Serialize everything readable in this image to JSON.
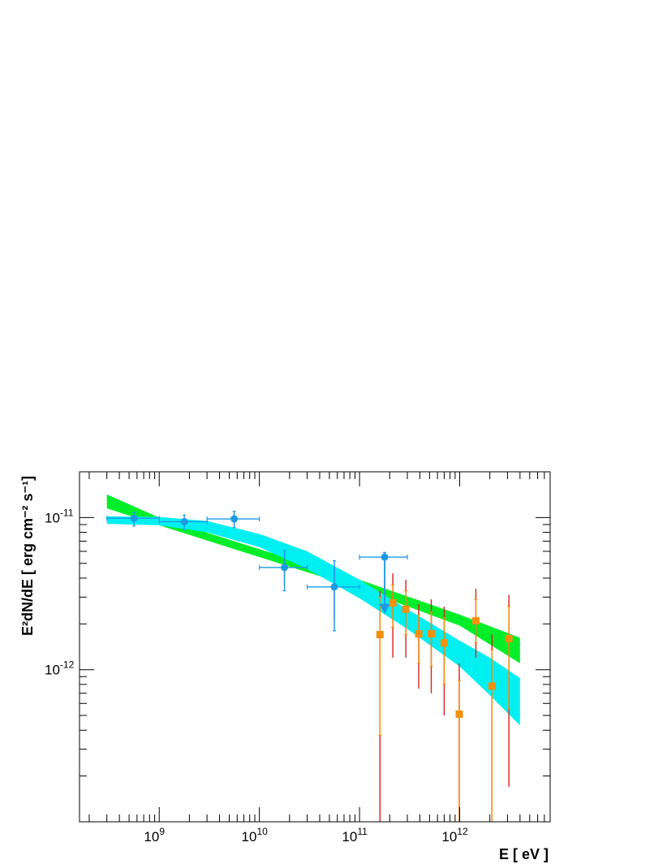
{
  "chart_data": {
    "type": "scatter",
    "x_scale": "log",
    "y_scale": "log",
    "xlabel": "E [ eV ]",
    "ylabel": "E²dN/dE [ erg cm⁻² s⁻¹]",
    "xlim": [
      160000000.0,
      8000000000000.0
    ],
    "ylim": [
      1e-13,
      2e-11
    ],
    "x_ticks": [
      {
        "value": 1000000000.0,
        "base": "10",
        "exp": "9"
      },
      {
        "value": 10000000000.0,
        "base": "10",
        "exp": "10"
      },
      {
        "value": 100000000000.0,
        "base": "10",
        "exp": "11"
      },
      {
        "value": 1000000000000.0,
        "base": "10",
        "exp": "12"
      }
    ],
    "y_ticks": [
      {
        "value": 1e-11,
        "base": "10",
        "exp": "-11"
      },
      {
        "value": 1e-12,
        "base": "10",
        "exp": "-12"
      }
    ],
    "colors": {
      "green_band": "#00ee2a",
      "cyan_band": "#00f0f2",
      "blue_points": "#1a9be6",
      "blue_stat_err": "#9b3fd6",
      "orange_points": "#f5900c",
      "orange_sys_err": "#d71f1f"
    },
    "bands": [
      {
        "name": "",
        "color": "#00ee2a",
        "x": [
          300000000.0,
          1000000000.0,
          10000000000.0,
          100000000000.0,
          1000000000000.0,
          4000000000000.0
        ],
        "y_low": [
          1.15e-11,
          8.9e-12,
          5.5e-12,
          3.4e-12,
          1.95e-12,
          1.1e-12
        ],
        "y_high": [
          1.42e-11,
          1e-11,
          6.2e-12,
          3.9e-12,
          2.3e-12,
          1.62e-12
        ]
      },
      {
        "name": "",
        "color": "#00f0f2",
        "x": [
          300000000.0,
          1000000000.0,
          3000000000.0,
          10000000000.0,
          30000000000.0,
          100000000000.0,
          300000000000.0,
          1000000000000.0,
          2000000000000.0,
          4000000000000.0
        ],
        "y_low": [
          9.1e-12,
          8.9e-12,
          8e-12,
          6.4e-12,
          4.6e-12,
          2.95e-12,
          1.85e-12,
          1.05e-12,
          6.8e-13,
          4.3e-13
        ],
        "y_high": [
          1.02e-11,
          1.01e-11,
          9.5e-12,
          7.8e-12,
          6e-12,
          3.9e-12,
          2.5e-12,
          1.55e-12,
          1.2e-12,
          8.8e-13
        ]
      }
    ],
    "series": [
      {
        "name": "",
        "color": "#1a9be6",
        "marker": "circle",
        "points": [
          {
            "x": 560000000.0,
            "y": 9.9e-12,
            "x_low": 300000000.0,
            "x_high": 1000000000.0,
            "y_low": 8.8e-12,
            "y_high": 1.08e-11,
            "sys_low": 9.2e-12,
            "sys_high": 1.05e-11
          },
          {
            "x": 1780000000.0,
            "y": 9.4e-12,
            "x_low": 1000000000.0,
            "x_high": 3000000000.0,
            "y_low": 8.3e-12,
            "y_high": 1.04e-11,
            "sys_low": 8.7e-12,
            "sys_high": 1e-11
          },
          {
            "x": 5600000000.0,
            "y": 9.8e-12,
            "x_low": 3000000000.0,
            "x_high": 10000000000.0,
            "y_low": 8.6e-12,
            "y_high": 1.1e-11,
            "sys_low": 8.9e-12,
            "sys_high": 1.07e-11
          },
          {
            "x": 17800000000.0,
            "y": 4.7e-12,
            "x_low": 10000000000.0,
            "x_high": 30000000000.0,
            "y_low": 3.3e-12,
            "y_high": 6.1e-12,
            "sys_low": 3.6e-12,
            "sys_high": 5.8e-12
          },
          {
            "x": 56000000000.0,
            "y": 3.5e-12,
            "x_low": 30000000000.0,
            "x_high": 100000000000.0,
            "y_low": 1.8e-12,
            "y_high": 5.2e-12,
            "sys_low": 2.1e-12,
            "sys_high": 4.8e-12
          },
          {
            "x": 178000000000.0,
            "y": 5.5e-12,
            "x_low": 100000000000.0,
            "x_high": 300000000000.0,
            "y_low": 2.4e-12,
            "y_high": 5.9e-12,
            "sys_low": 2.4e-12,
            "sys_high": 5.9e-12,
            "upper_limit": true
          }
        ]
      },
      {
        "name": "",
        "color": "#f5900c",
        "marker": "square",
        "points": [
          {
            "x": 160000000000.0,
            "y": 1.7e-12,
            "y_low": 3.7e-13,
            "y_high": 3e-12,
            "sys_low": 1e-13,
            "sys_high": 3.3e-12
          },
          {
            "x": 215000000000.0,
            "y": 2.75e-12,
            "y_low": 1.9e-12,
            "y_high": 3.6e-12,
            "sys_low": 1.2e-12,
            "sys_high": 4.3e-12
          },
          {
            "x": 290000000000.0,
            "y": 2.5e-12,
            "y_low": 1.7e-12,
            "y_high": 3.3e-12,
            "sys_low": 1.2e-12,
            "sys_high": 3.9e-12
          },
          {
            "x": 390000000000.0,
            "y": 1.72e-12,
            "y_low": 1.1e-12,
            "y_high": 2.3e-12,
            "sys_low": 7.5e-13,
            "sys_high": 2.7e-12
          },
          {
            "x": 520000000000.0,
            "y": 1.72e-12,
            "y_low": 1.05e-12,
            "y_high": 2.4e-12,
            "sys_low": 7e-13,
            "sys_high": 2.9e-12
          },
          {
            "x": 700000000000.0,
            "y": 1.5e-12,
            "y_low": 8e-13,
            "y_high": 2.2e-12,
            "sys_low": 5e-13,
            "sys_high": 2.6e-12
          },
          {
            "x": 990000000000.0,
            "y": 5.1e-13,
            "y_low": 1e-13,
            "y_high": 8.5e-13,
            "sys_low": 1e-13,
            "sys_high": 1.1e-12
          },
          {
            "x": 1450000000000.0,
            "y": 2.1e-12,
            "y_low": 1.5e-12,
            "y_high": 2.9e-12,
            "sys_low": 1.2e-12,
            "sys_high": 3.4e-12
          },
          {
            "x": 2100000000000.0,
            "y": 7.8e-13,
            "y_low": 1e-13,
            "y_high": 1.35e-12,
            "sys_low": 1e-13,
            "sys_high": 1.7e-12
          },
          {
            "x": 3100000000000.0,
            "y": 1.6e-12,
            "y_low": 5.5e-13,
            "y_high": 2.6e-12,
            "sys_low": 1.7e-13,
            "sys_high": 3.1e-12
          }
        ]
      }
    ],
    "grid": false,
    "legend": "none"
  }
}
